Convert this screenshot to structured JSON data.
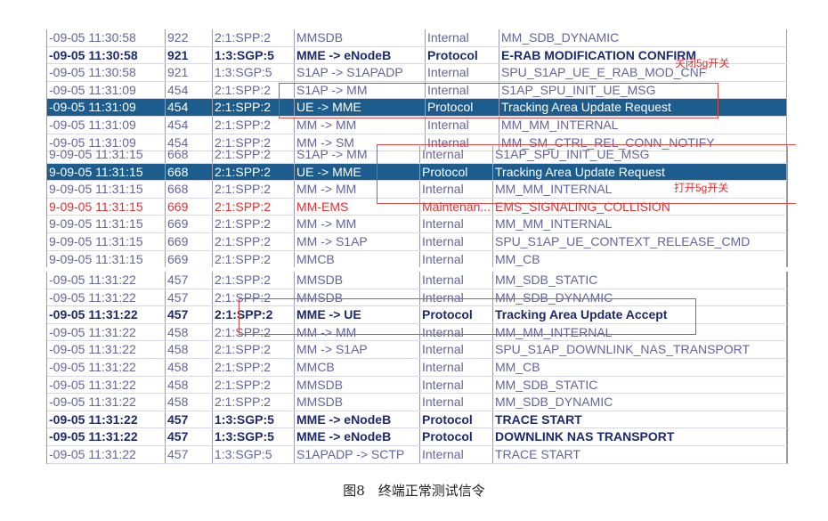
{
  "sections": [
    {
      "rows": [
        [
          "-09-05 11:30:58",
          "922",
          "2:1:SPP:2",
          "MMSDB",
          "Internal",
          "MM_SDB_DYNAMIC"
        ],
        [
          "-09-05 11:30:58",
          "921",
          "1:3:SGP:5",
          "MME -> eNodeB",
          "Protocol",
          "E-RAB MODIFICATION CONFIRM"
        ],
        [
          "-09-05 11:30:58",
          "921",
          "1:3:SGP:5",
          "S1AP -> S1APADP",
          "Internal",
          "SPU_S1AP_UE_E_RAB_MOD_CNF"
        ],
        [
          "-09-05 11:31:09",
          "454",
          "2:1:SPP:2",
          "S1AP -> MM",
          "Internal",
          "S1AP_SPU_INIT_UE_MSG"
        ],
        [
          "-09-05 11:31:09",
          "454",
          "2:1:SPP:2",
          "UE -> MME",
          "Protocol",
          "Tracking Area Update Request"
        ],
        [
          "-09-05 11:31:09",
          "454",
          "2:1:SPP:2",
          "MM -> MM",
          "Internal",
          "MM_MM_INTERNAL"
        ],
        [
          "-09-05 11:31:09",
          "454",
          "2:1:SPP:2",
          "MM -> SM",
          "Internal",
          "MM_SM_CTRL_REL_CONN_NOTIFY"
        ]
      ]
    },
    {
      "rows": [
        [
          "9-09-05 11:31:15",
          "668",
          "2:1:SPP:2",
          "S1AP -> MM",
          "Internal",
          "S1AP_SPU_INIT_UE_MSG"
        ],
        [
          "9-09-05 11:31:15",
          "668",
          "2:1:SPP:2",
          "UE -> MME",
          "Protocol",
          "Tracking Area Update Request"
        ],
        [
          "9-09-05 11:31:15",
          "668",
          "2:1:SPP:2",
          "MM -> MM",
          "Internal",
          "MM_MM_INTERNAL"
        ],
        [
          "9-09-05 11:31:15",
          "669",
          "2:1:SPP:2",
          "MM-EMS",
          "Maintenan...",
          "EMS_SIGNALING_COLLISION"
        ],
        [
          "9-09-05 11:31:15",
          "669",
          "2:1:SPP:2",
          "MM -> MM",
          "Internal",
          "MM_MM_INTERNAL"
        ],
        [
          "9-09-05 11:31:15",
          "669",
          "2:1:SPP:2",
          "MM -> S1AP",
          "Internal",
          "SPU_S1AP_UE_CONTEXT_RELEASE_CMD"
        ],
        [
          "9-09-05 11:31:15",
          "669",
          "2:1:SPP:2",
          "MMCB",
          "Internal",
          "MM_CB"
        ]
      ]
    },
    {
      "rows": [
        [
          "-09-05 11:31:22",
          "457",
          "2:1:SPP:2",
          "MMSDB",
          "Internal",
          "MM_SDB_STATIC"
        ],
        [
          "-09-05 11:31:22",
          "457",
          "2:1:SPP:2",
          "MMSDB",
          "Internal",
          "MM_SDB_DYNAMIC"
        ],
        [
          "-09-05 11:31:22",
          "457",
          "2:1:SPP:2",
          "MME -> UE",
          "Protocol",
          "Tracking Area Update Accept"
        ],
        [
          "-09-05 11:31:22",
          "458",
          "2:1:SPP:2",
          "MM -> MM",
          "Internal",
          "MM_MM_INTERNAL"
        ],
        [
          "-09-05 11:31:22",
          "458",
          "2:1:SPP:2",
          "MM -> S1AP",
          "Internal",
          "SPU_S1AP_DOWNLINK_NAS_TRANSPORT"
        ],
        [
          "-09-05 11:31:22",
          "458",
          "2:1:SPP:2",
          "MMCB",
          "Internal",
          "MM_CB"
        ],
        [
          "-09-05 11:31:22",
          "458",
          "2:1:SPP:2",
          "MMSDB",
          "Internal",
          "MM_SDB_STATIC"
        ],
        [
          "-09-05 11:31:22",
          "458",
          "2:1:SPP:2",
          "MMSDB",
          "Internal",
          "MM_SDB_DYNAMIC"
        ],
        [
          "-09-05 11:31:22",
          "457",
          "1:3:SGP:5",
          "MME -> eNodeB",
          "Protocol",
          "TRACE START"
        ],
        [
          "-09-05 11:31:22",
          "457",
          "1:3:SGP:5",
          "MME -> eNodeB",
          "Protocol",
          "DOWNLINK NAS TRANSPORT"
        ],
        [
          "-09-05 11:31:22",
          "457",
          "1:3:SGP:5",
          "S1APADP -> SCTP",
          "Internal",
          "TRACE START"
        ]
      ]
    }
  ],
  "annotations": [
    "关闭5g开关",
    "打开5g开关"
  ],
  "caption": "图8　终端正常测试信令"
}
